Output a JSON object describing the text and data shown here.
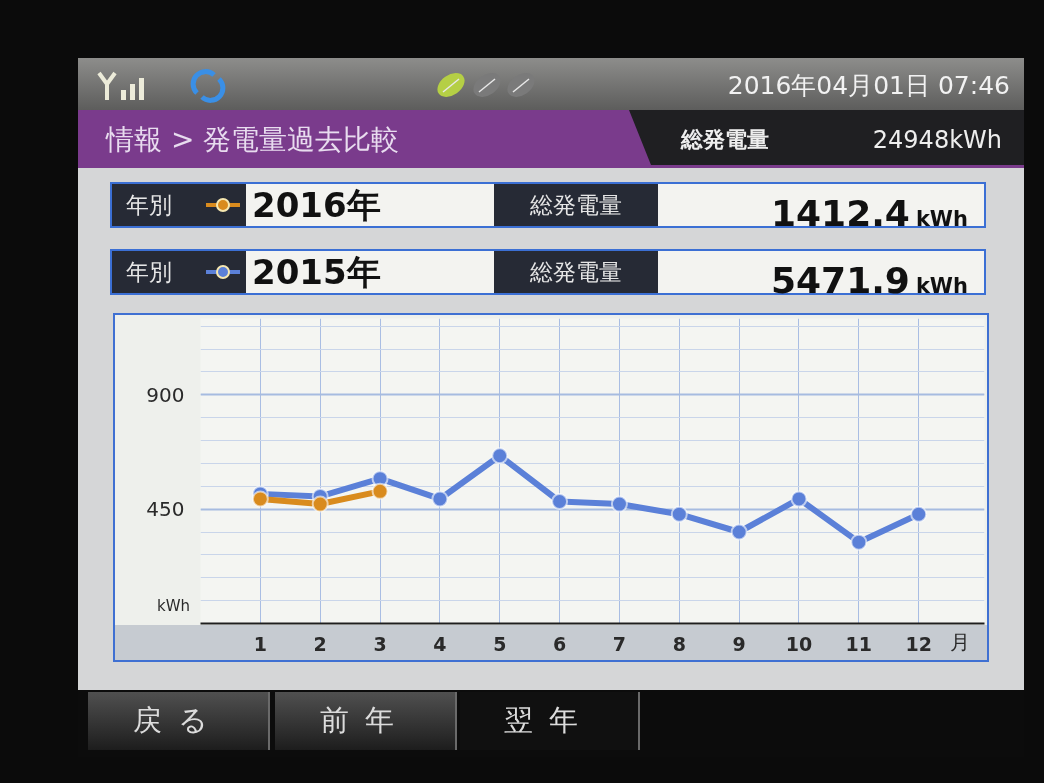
{
  "chart_data": {
    "type": "line",
    "title": "情報 > 発電量過去比較",
    "xlabel": "月",
    "ylabel": "kWh",
    "x": [
      1,
      2,
      3,
      4,
      5,
      6,
      7,
      8,
      9,
      10,
      11,
      12
    ],
    "xlim": [
      0,
      13.1
    ],
    "xticks": [
      1,
      2,
      3,
      4,
      5,
      6,
      7,
      8,
      9,
      10,
      11,
      12
    ],
    "ylim": [
      0,
      1200
    ],
    "yticks": [
      {
        "value": 90,
        "label": null
      },
      {
        "value": 180,
        "label": null
      },
      {
        "value": 270,
        "label": null
      },
      {
        "value": 360,
        "label": null
      },
      450,
      {
        "value": 540,
        "label": null
      },
      {
        "value": 630,
        "label": null
      },
      {
        "value": 720,
        "label": null
      },
      {
        "value": 810,
        "label": null
      },
      900,
      {
        "value": 990,
        "label": null
      },
      {
        "value": 1080,
        "label": null
      },
      {
        "value": 1170,
        "label": null
      }
    ],
    "grid": true,
    "legend": "top",
    "marker": "circle",
    "line_style": "solid",
    "series": [
      {
        "name": "2016年",
        "color": "#d98b1e",
        "values": [
          490,
          470,
          520,
          null,
          null,
          null,
          null,
          null,
          null,
          null,
          null,
          null
        ]
      },
      {
        "name": "2015年",
        "color": "#5b80d8",
        "values": [
          510,
          500,
          570,
          490,
          660,
          480,
          470,
          430,
          360,
          490,
          320,
          430
        ]
      }
    ],
    "annotations": [
      "2016年04月01日 07:46",
      "総発電量",
      "24948kWh",
      "年別",
      "総発電量",
      "1412.4",
      "kWh",
      "年別",
      "総発電量",
      "5471.9",
      "kWh",
      "戻る",
      "前年",
      "翌年"
    ]
  }
}
